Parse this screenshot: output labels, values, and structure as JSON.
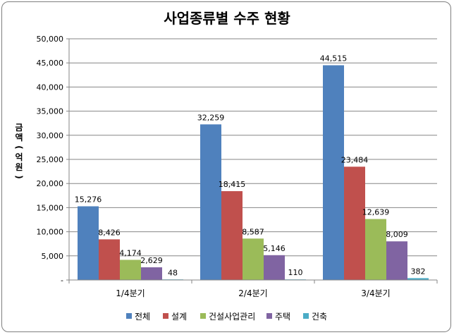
{
  "chart_data": {
    "type": "bar",
    "title": "사업종류별 수주 현황",
    "ylabel": "금액(억원)",
    "ylim": [
      0,
      50000
    ],
    "yticks": [
      0,
      5000,
      10000,
      15000,
      20000,
      25000,
      30000,
      35000,
      40000,
      45000,
      50000
    ],
    "ytick_labels": [
      "-",
      "5,000",
      "10,000",
      "15,000",
      "20,000",
      "25,000",
      "30,000",
      "35,000",
      "40,000",
      "45,000",
      "50,000"
    ],
    "categories": [
      "1/4분기",
      "2/4분기",
      "3/4분기"
    ],
    "series": [
      {
        "name": "전체",
        "color": "#4f81bd",
        "values": [
          15276,
          32259,
          44515
        ],
        "labels": [
          "15,276",
          "32,259",
          "44,515"
        ]
      },
      {
        "name": "설계",
        "color": "#c0504d",
        "values": [
          8426,
          18415,
          23484
        ],
        "labels": [
          "8,426",
          "18,415",
          "23,484"
        ]
      },
      {
        "name": "건설사업관리",
        "color": "#9bbb59",
        "values": [
          4174,
          8587,
          12639
        ],
        "labels": [
          "4,174",
          "8,587",
          "12,639"
        ]
      },
      {
        "name": "주택",
        "color": "#8064a2",
        "values": [
          2629,
          5146,
          8009
        ],
        "labels": [
          "2,629",
          "5,146",
          "8,009"
        ]
      },
      {
        "name": "건축",
        "color": "#4bacc6",
        "values": [
          48,
          110,
          382
        ],
        "labels": [
          "48",
          "110",
          "382"
        ]
      }
    ],
    "grid": true,
    "legend": "bottom"
  }
}
